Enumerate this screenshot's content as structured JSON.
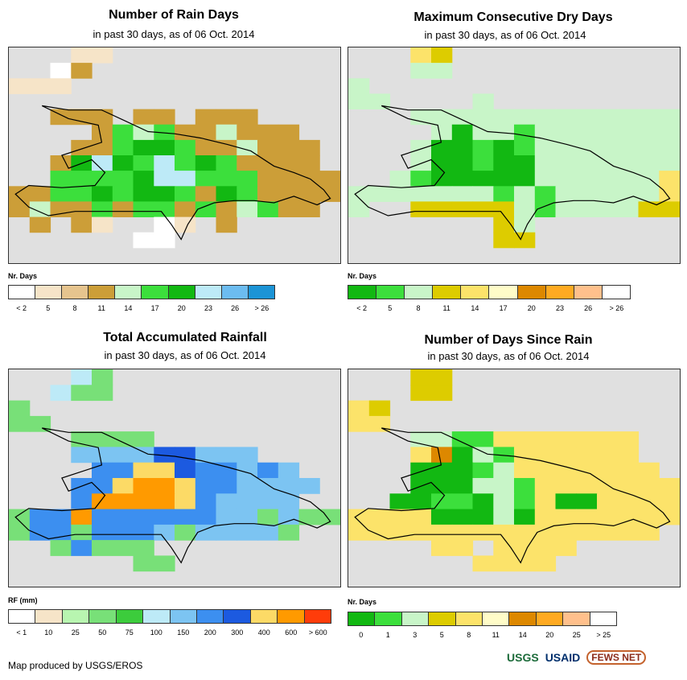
{
  "panels": [
    {
      "title": "Number of Rain Days",
      "subtitle": "in past 30 days, as of 06 Oct. 2014",
      "legend": {
        "title": "Nr. Days",
        "colors": [
          "#ffffff",
          "#f6e4c8",
          "#e6c48e",
          "#cc9e38",
          "#c8f5c8",
          "#3cdf3c",
          "#12b812",
          "#bdeaf7",
          "#6cbcf0",
          "#1c94d6"
        ],
        "labels": [
          "< 2",
          "5",
          "8",
          "11",
          "14",
          "17",
          "20",
          "23",
          "26",
          "> 26"
        ]
      },
      "grid": [
        "...tt...........",
        "..wT............",
        "ttt.............",
        "................",
        "..TTT.TT.TTT....",
        "....TgsgTTsTTT..",
        "...TTgGGgTTsTTT.",
        "..TGbGgbgGgTTTT.",
        "..ggggGbbgggTTTT",
        "TTggGgGGgTGgTTTT",
        "TsTTgTggTgTsgTT.",
        ".T.Tt..wt.T.....",
        "......ww........",
        "................"
      ]
    },
    {
      "title": "Maximum Consecutive Dry Days",
      "subtitle": "in past 30 days, as of 06 Oct. 2014",
      "legend": {
        "title": "Nr. Days",
        "colors": [
          "#12b812",
          "#3cdf3c",
          "#c8f5c8",
          "#ddcc00",
          "#fce36a",
          "#fffcc8",
          "#dd8800",
          "#ffaa22",
          "#ffc08c",
          "#ffffff"
        ],
        "labels": [
          "< 2",
          "5",
          "8",
          "11",
          "14",
          "17",
          "20",
          "23",
          "26",
          "> 26"
        ]
      },
      "grid": [
        "...yY...........",
        "...ss...........",
        "s...............",
        "ss....s.........",
        "...sssssssssssss",
        "....sGssgsssssss",
        "...sGGgGgsssssss",
        "...sGGgGGsssssss",
        "..sgGGGGGssssssy",
        "sssssssgsgsssssy",
        "s..YYYYYsgssssYY",
        ".......Ys.......",
        ".......YY.......",
        "................"
      ]
    },
    {
      "title": "Total Accumulated Rainfall",
      "subtitle": "in past 30 days, as of 06 Oct. 2014",
      "legend": {
        "title": "RF (mm)",
        "colors": [
          "#ffffff",
          "#f6e4c8",
          "#b8f5b0",
          "#78e078",
          "#3ccc3c",
          "#bdeaf7",
          "#7cc4f2",
          "#3c8ff0",
          "#1c5ae0",
          "#fcda66",
          "#ff9a00",
          "#ff3c0a"
        ],
        "labels": [
          "< 1",
          "10",
          "25",
          "50",
          "75",
          "100",
          "150",
          "200",
          "300",
          "400",
          "600",
          "> 600"
        ]
      },
      "grid": [
        "...sg...........",
        "..sgg...........",
        "g...............",
        "gg..............",
        "...gggg.........",
        "...bbbbDDbbb....",
        "....BByyDBBbBb..",
        "...BByOOyBBbbbb.",
        "...BOOOOyBbbbb..",
        "gBBoBBBBBBbbgbgg",
        "gBBgBBBbgbbbbg..",
        "..gBggg.........",
        "......gg........",
        "................"
      ]
    },
    {
      "title": "Number of Days Since Rain",
      "subtitle": "in past 30 days, as of 06 Oct. 2014",
      "legend": {
        "title": "Nr. Days",
        "colors": [
          "#12b812",
          "#3cdf3c",
          "#c8f5c8",
          "#ddcc00",
          "#fce36a",
          "#fffcc8",
          "#dd8800",
          "#ffaa22",
          "#ffc08c",
          "#ffffff"
        ],
        "labels": [
          "0",
          "1",
          "3",
          "5",
          "8",
          "11",
          "14",
          "20",
          "25",
          "> 25"
        ]
      },
      "grid": [
        "...YY...........",
        "...YY...........",
        "yY..............",
        "yy..............",
        "...ssggyyyyyyy..",
        "...yoGsgyyyyyy..",
        "...GGGgsyyyyyyy.",
        "...GGGssgyyyyyyy",
        "..GGggGsgyGGyyyy",
        "yyyyGGGsGyyyyyyy",
        "yyyyyyyyyyyyyyy.",
        "....yy.yyyy.....",
        "......yyyy......",
        "................"
      ]
    }
  ],
  "credit": "Map produced by USGS/EROS",
  "logos": {
    "usgs": "USGS",
    "usaid": "USAID",
    "fews": "FEWS NET"
  }
}
